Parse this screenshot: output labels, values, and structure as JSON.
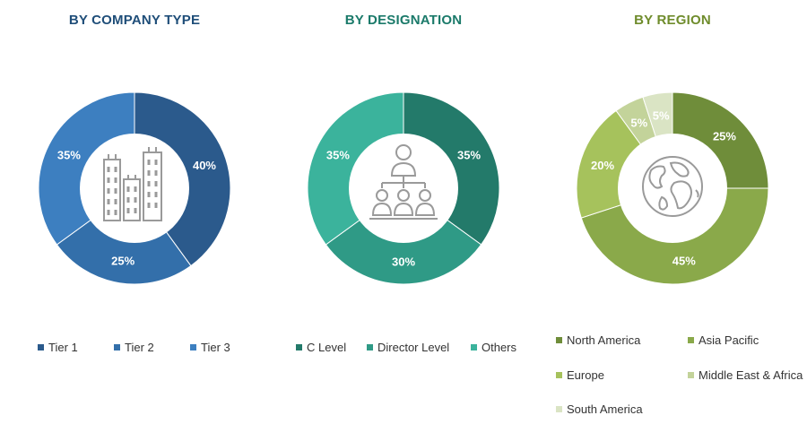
{
  "chart_data": [
    {
      "type": "pie",
      "title": "BY COMPANY TYPE",
      "title_color": "#1f4e79",
      "categories": [
        "Tier 1",
        "Tier 2",
        "Tier 3"
      ],
      "values": [
        40,
        25,
        35
      ],
      "labels": [
        "40%",
        "25%",
        "35%"
      ],
      "colors": [
        "#2b5a8c",
        "#336faa",
        "#3d7fc0"
      ],
      "legend": [
        "Tier 1",
        "Tier 2",
        "Tier 3"
      ],
      "center_icon": "buildings-icon"
    },
    {
      "type": "pie",
      "title": "BY DESIGNATION",
      "title_color": "#1b7a6a",
      "categories": [
        "C Level",
        "Director Level",
        "Others"
      ],
      "values": [
        35,
        30,
        35
      ],
      "labels": [
        "35%",
        "30%",
        "35%"
      ],
      "colors": [
        "#237a6a",
        "#2f9a86",
        "#3bb39c"
      ],
      "legend": [
        "C Level",
        "Director Level",
        "Others"
      ],
      "center_icon": "org-hierarchy-icon"
    },
    {
      "type": "pie",
      "title": "BY REGION",
      "title_color": "#6f8c2c",
      "categories": [
        "North America",
        "Asia Pacific",
        "Europe",
        "Middle East & Africa",
        "South America"
      ],
      "values": [
        25,
        45,
        20,
        5,
        5
      ],
      "labels": [
        "25%",
        "45%",
        "20%",
        "5%",
        "5%"
      ],
      "colors": [
        "#6f8d3a",
        "#8aa94a",
        "#a6c25c",
        "#c3d39a",
        "#dae4c4"
      ],
      "legend": [
        "North America",
        "Asia Pacific",
        "Europe",
        "Middle East & Africa",
        "South America"
      ],
      "center_icon": "globe-icon"
    }
  ]
}
